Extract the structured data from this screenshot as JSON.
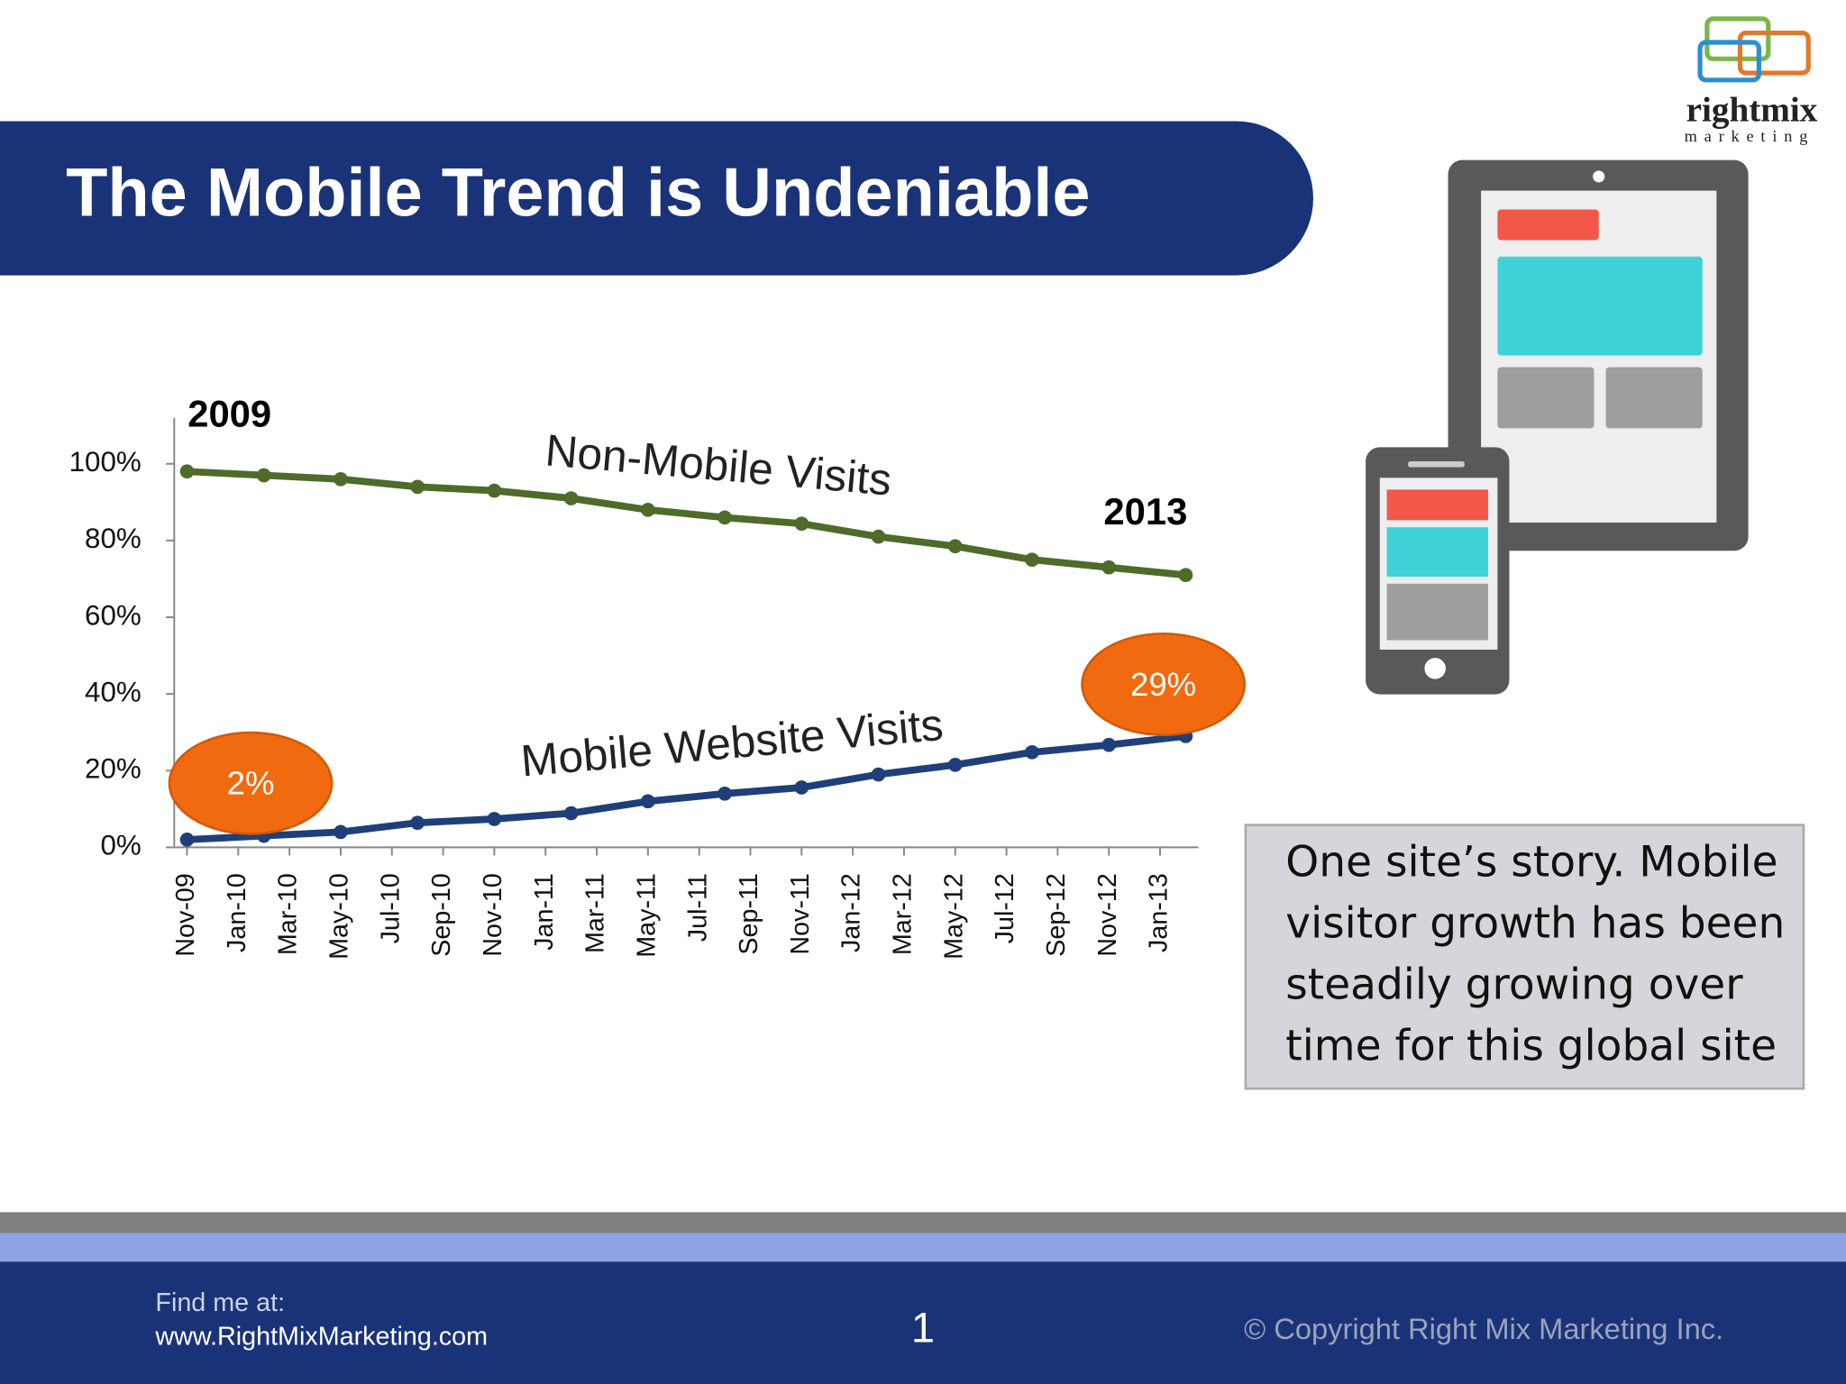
{
  "header": {
    "title": "The Mobile Trend is Undeniable"
  },
  "logo": {
    "name": "rightmix",
    "tagline": "marketing"
  },
  "chart_data": {
    "type": "line",
    "x": [
      0,
      3,
      6,
      9,
      12,
      15,
      18,
      21,
      24,
      27,
      30,
      33,
      36,
      39
    ],
    "series": [
      {
        "name": "Non-Mobile Visits",
        "color": "#4e6b2a",
        "values": [
          98,
          97,
          96,
          94,
          93,
          91,
          88,
          86,
          84.4,
          81,
          78.5,
          75,
          73,
          71
        ]
      },
      {
        "name": "Mobile Website Visits",
        "color": "#1f3f7a",
        "values": [
          2,
          3,
          4,
          6.4,
          7.4,
          8.9,
          12,
          14,
          15.6,
          19,
          21.5,
          24.8,
          26.7,
          29
        ],
        "value_labels": [
          "2%",
          null,
          null,
          null,
          null,
          null,
          null,
          null,
          null,
          null,
          null,
          null,
          null,
          "29%"
        ]
      }
    ],
    "xlim": [
      -0.5,
      39.5
    ],
    "xticks": [
      {
        "value": 0,
        "label": "Nov-09"
      },
      {
        "value": 2,
        "label": "Jan-10"
      },
      {
        "value": 4,
        "label": "Mar-10"
      },
      {
        "value": 6,
        "label": "May-10"
      },
      {
        "value": 8,
        "label": "Jul-10"
      },
      {
        "value": 10,
        "label": "Sep-10"
      },
      {
        "value": 12,
        "label": "Nov-10"
      },
      {
        "value": 14,
        "label": "Jan-11"
      },
      {
        "value": 16,
        "label": "Mar-11"
      },
      {
        "value": 18,
        "label": "May-11"
      },
      {
        "value": 20,
        "label": "Jul-11"
      },
      {
        "value": 22,
        "label": "Sep-11"
      },
      {
        "value": 24,
        "label": "Nov-11"
      },
      {
        "value": 26,
        "label": "Jan-12"
      },
      {
        "value": 28,
        "label": "Mar-12"
      },
      {
        "value": 30,
        "label": "May-12"
      },
      {
        "value": 32,
        "label": "Jul-12"
      },
      {
        "value": 34,
        "label": "Sep-12"
      },
      {
        "value": 36,
        "label": "Nov-12"
      },
      {
        "value": 38,
        "label": "Jan-13"
      }
    ],
    "ylim": [
      0,
      112
    ],
    "yticks": [
      {
        "value": 0,
        "label": "0%"
      },
      {
        "value": 20,
        "label": "20%"
      },
      {
        "value": 40,
        "label": "40%"
      },
      {
        "value": 60,
        "label": "60%"
      },
      {
        "value": 80,
        "label": "80%"
      },
      {
        "value": 100,
        "label": "100%"
      }
    ],
    "annotations": [
      "2009",
      "2013"
    ]
  },
  "callout": {
    "lines": [
      "One site’s story. Mobile",
      "visitor growth has been",
      "steadily growing over",
      "time for this global site"
    ]
  },
  "footer": {
    "find": "Find me at:",
    "url": "www.RightMixMarketing.com",
    "page": "1",
    "copyright": "© Copyright Right Mix Marketing Inc."
  }
}
